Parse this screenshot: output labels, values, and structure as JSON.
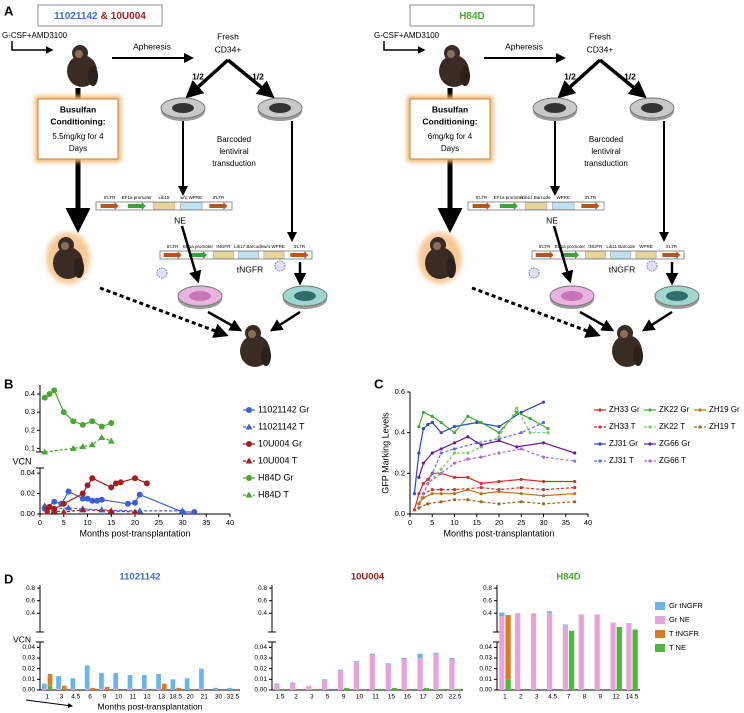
{
  "panel_labels": [
    "A",
    "B",
    "C",
    "D"
  ],
  "panel_a": [
    {
      "header": {
        "parts": [
          {
            "text": "11021142",
            "color": "#3a6fc4"
          },
          {
            "text": "&",
            "color": "#9e1b1b"
          },
          {
            "text": "10U004",
            "color": "#9e1b1b"
          }
        ]
      },
      "mobilization": "G-CSF+AMD3100",
      "apheresis": "Apheresis",
      "cells": [
        "Fresh",
        "CD34+"
      ],
      "split": [
        "1/2",
        "1/2"
      ],
      "conditioning": {
        "title": [
          "Busulfan",
          "Conditioning:"
        ],
        "dose": [
          "5.5mg/kg for 4",
          "Days"
        ]
      },
      "transduction": [
        "Barcoded",
        "lentiviral",
        "transduction"
      ],
      "vectors": [
        {
          "name": "NE",
          "elements": [
            "5'LTR",
            "EF1a promoter",
            "Lib15",
            "w/o WPRE",
            "3'LTR"
          ]
        },
        {
          "name": "tNGFR",
          "elements": [
            "5'LTR",
            "EF1a promoter",
            "tNGFR",
            "Lib17 Barcode",
            "w/o WPRE",
            "3'LTR"
          ]
        }
      ]
    },
    {
      "header": {
        "parts": [
          {
            "text": "H84D",
            "color": "#4aa832"
          }
        ]
      },
      "mobilization": "G-CSF+AMD3100",
      "apheresis": "Apheresis",
      "cells": [
        "Fresh",
        "CD34+"
      ],
      "split": [
        "1/2",
        "1/2"
      ],
      "conditioning": {
        "title": [
          "Busulfan",
          "Conditioning:"
        ],
        "dose": [
          "6mg/kg for 4",
          "Days"
        ]
      },
      "transduction": [
        "Barcoded",
        "lentiviral",
        "transduction"
      ],
      "vectors": [
        {
          "name": "NE",
          "elements": [
            "5'LTR",
            "EF1a promoter",
            "Lib21 Barcode",
            "WPRE",
            "3'LTR"
          ]
        },
        {
          "name": "tNGFR",
          "elements": [
            "5'LTR",
            "EF1a promoter",
            "tNGFR",
            "Lib11 Barcode",
            "WPRE",
            "3'LTR"
          ]
        }
      ]
    }
  ],
  "chart_data": [
    {
      "type": "line",
      "ylabel": "VCN",
      "xlabel": "Months post-transplantation",
      "xlim": [
        0,
        40
      ],
      "xticks": [
        0,
        5,
        10,
        15,
        20,
        25,
        30,
        35,
        40
      ],
      "ylim": [
        0,
        0.45
      ],
      "ybreak": [
        0.045,
        0.08
      ],
      "yticks": [
        {
          "value": 0,
          "label": "0.00"
        },
        0.02,
        0.04,
        0.1,
        0.2,
        0.3,
        0.4
      ],
      "series": [
        {
          "name": "11021142 Gr",
          "color": "#3b5fd9",
          "marker": "circle",
          "dashed": false,
          "x": [
            1,
            3,
            4.5,
            6,
            9,
            10,
            11,
            12,
            13,
            18.5,
            20,
            21,
            30,
            32.5
          ],
          "values": [
            0.005,
            0.012,
            0.01,
            0.022,
            0.015,
            0.015,
            0.013,
            0.013,
            0.014,
            0.01,
            0.011,
            0.019,
            0.002,
            0.002
          ]
        },
        {
          "name": "11021142 T",
          "color": "#3b5fd9",
          "marker": "triangle",
          "dashed": true,
          "x": [
            1,
            3,
            6,
            9,
            13,
            21,
            30
          ],
          "values": [
            0.008,
            0.005,
            0.006,
            0.005,
            0.004,
            0.003,
            0.003
          ]
        },
        {
          "name": "10U004 Gr",
          "color": "#a51d1d",
          "marker": "circle",
          "dashed": false,
          "x": [
            1.5,
            2,
            3,
            5,
            9,
            10,
            11,
            15,
            16,
            17,
            20,
            22.5
          ],
          "values": [
            0.005,
            0.007,
            0.005,
            0.01,
            0.02,
            0.028,
            0.035,
            0.026,
            0.03,
            0.031,
            0.035,
            0.03
          ]
        },
        {
          "name": "10U004 T",
          "color": "#a51d1d",
          "marker": "triangle",
          "dashed": true,
          "x": [
            1.5,
            3,
            5,
            9,
            15,
            20
          ],
          "values": [
            0.002,
            0.003,
            0.002,
            0.004,
            0.003,
            0.002
          ]
        },
        {
          "name": "H84D Gr",
          "color": "#4aa832",
          "marker": "circle",
          "dashed": false,
          "x": [
            1,
            2,
            3,
            5,
            7,
            9,
            11,
            13,
            15
          ],
          "values": [
            0.38,
            0.4,
            0.42,
            0.3,
            0.25,
            0.23,
            0.25,
            0.22,
            0.24
          ]
        },
        {
          "name": "H84D T",
          "color": "#4aa832",
          "marker": "triangle",
          "dashed": true,
          "x": [
            1,
            7,
            9,
            11,
            13,
            15
          ],
          "values": [
            0.08,
            0.1,
            0.11,
            0.12,
            0.16,
            0.14
          ]
        }
      ]
    },
    {
      "type": "line",
      "ylabel": "GFP Marking Levels",
      "xlabel": "Months post-transplantation",
      "xlim": [
        0,
        40
      ],
      "xticks": [
        0,
        5,
        10,
        15,
        20,
        25,
        30,
        35,
        40
      ],
      "ylim": [
        0,
        0.6
      ],
      "yticks": [
        {
          "value": 0,
          "label": "0.0"
        },
        0.2,
        0.4,
        0.6
      ],
      "series": [
        {
          "name": "ZH33 Gr",
          "color": "#d9302b",
          "dashed": false,
          "x": [
            1,
            2,
            3,
            4,
            5,
            7,
            10,
            13,
            16,
            20,
            25,
            30,
            37
          ],
          "values": [
            0.02,
            0.1,
            0.15,
            0.17,
            0.2,
            0.2,
            0.18,
            0.18,
            0.15,
            0.16,
            0.17,
            0.16,
            0.16
          ]
        },
        {
          "name": "ZH33 T",
          "color": "#d9302b",
          "dashed": true,
          "x": [
            2,
            3,
            5,
            7,
            10,
            16,
            20,
            25,
            30,
            37
          ],
          "values": [
            0.05,
            0.1,
            0.12,
            0.12,
            0.12,
            0.13,
            0.12,
            0.13,
            0.12,
            0.13
          ]
        },
        {
          "name": "ZJ31 Gr",
          "color": "#2f47c9",
          "dashed": false,
          "x": [
            1,
            2,
            3,
            4,
            5,
            7,
            10,
            15,
            20,
            25,
            30
          ],
          "values": [
            0.1,
            0.3,
            0.42,
            0.44,
            0.45,
            0.4,
            0.43,
            0.45,
            0.43,
            0.5,
            0.55
          ]
        },
        {
          "name": "ZJ31 T",
          "color": "#5b6cf0",
          "dashed": true,
          "x": [
            2,
            3,
            5,
            7,
            10,
            15,
            20,
            25,
            30
          ],
          "values": [
            0.05,
            0.1,
            0.2,
            0.3,
            0.32,
            0.35,
            0.37,
            0.4,
            0.45
          ]
        },
        {
          "name": "ZK22 Gr",
          "color": "#3fa83a",
          "dashed": false,
          "x": [
            2,
            3,
            5,
            7,
            10,
            13,
            16,
            20,
            24,
            27,
            31
          ],
          "values": [
            0.43,
            0.5,
            0.48,
            0.45,
            0.4,
            0.48,
            0.45,
            0.4,
            0.5,
            0.47,
            0.42
          ]
        },
        {
          "name": "ZK22 T",
          "color": "#7cc96a",
          "dashed": true,
          "x": [
            2,
            4,
            7,
            10,
            13,
            16,
            20,
            24,
            27,
            31
          ],
          "values": [
            0.05,
            0.15,
            0.22,
            0.3,
            0.3,
            0.33,
            0.38,
            0.52,
            0.4,
            0.4
          ]
        },
        {
          "name": "ZG66 Gr",
          "color": "#6a1f8f",
          "dashed": false,
          "x": [
            2,
            3,
            5,
            7,
            10,
            13,
            16,
            20,
            24,
            30,
            37
          ],
          "values": [
            0.18,
            0.25,
            0.3,
            0.32,
            0.35,
            0.38,
            0.34,
            0.36,
            0.33,
            0.35,
            0.3
          ]
        },
        {
          "name": "ZG66 T",
          "color": "#b06ad0",
          "dashed": true,
          "x": [
            2,
            4,
            7,
            10,
            13,
            16,
            20,
            25,
            30,
            37
          ],
          "values": [
            0.05,
            0.15,
            0.2,
            0.25,
            0.27,
            0.28,
            0.3,
            0.32,
            0.28,
            0.26
          ]
        },
        {
          "name": "ZH19 Gr",
          "color": "#c06d16",
          "dashed": false,
          "x": [
            2,
            3,
            5,
            7,
            10,
            13,
            16,
            20,
            25,
            30,
            37
          ],
          "values": [
            0.05,
            0.08,
            0.1,
            0.1,
            0.1,
            0.12,
            0.1,
            0.11,
            0.1,
            0.09,
            0.1
          ]
        },
        {
          "name": "ZH19 T",
          "color": "#a0681f",
          "dashed": true,
          "x": [
            2,
            4,
            7,
            10,
            13,
            16,
            20,
            25,
            30,
            37
          ],
          "values": [
            0.03,
            0.05,
            0.06,
            0.07,
            0.07,
            0.06,
            0.05,
            0.06,
            0.05,
            0.06
          ]
        }
      ]
    },
    {
      "type": "grouped-stacked-bar",
      "ylabel": "VCN",
      "xlabel": "Months post-transplantation",
      "ylim": [
        0,
        0.85
      ],
      "ybreak": [
        0.045,
        0.1
      ],
      "yticks": [
        {
          "value": 0,
          "label": "0.00"
        },
        0.01,
        0.02,
        0.03,
        0.04,
        0.4,
        0.6,
        0.8
      ],
      "legend": [
        {
          "name": "Gr tNGFR",
          "color": "#6ab4ec"
        },
        {
          "name": "Gr NE",
          "color": "#e9a3dc"
        },
        {
          "name": "T tNGFR",
          "color": "#d97b22"
        },
        {
          "name": "T NE",
          "color": "#4cbb3a"
        }
      ],
      "panels": [
        {
          "title": "11021142",
          "title_color": "#3a6fc4",
          "categories": [
            "1",
            "3",
            "4.5",
            "6",
            "9",
            "10",
            "11",
            "12",
            "13",
            "18.5",
            "20",
            "21",
            "30",
            "32.5"
          ],
          "series": [
            {
              "values": [
                0.005,
                0.012,
                0.01,
                0.022,
                0.015,
                0.015,
                0.013,
                0.013,
                0.014,
                0.01,
                0.011,
                0.019,
                0.002,
                0.002
              ]
            },
            {
              "values": [
                0.001,
                0.001,
                0.001,
                0.001,
                0.001,
                0.001,
                0.001,
                0.001,
                0.001,
                0,
                0,
                0.001,
                0,
                0
              ]
            },
            {
              "values": [
                0.011,
                0.004,
                0,
                0.002,
                0.003,
                0,
                0,
                0,
                0.006,
                0.002,
                0,
                0,
                0,
                0
              ]
            },
            {
              "values": [
                0.004,
                0,
                0,
                0,
                0,
                0,
                0,
                0,
                0,
                0,
                0,
                0,
                0,
                0
              ]
            }
          ]
        },
        {
          "title": "10U004",
          "title_color": "#9e1b1b",
          "categories": [
            "1.5",
            "2",
            "3",
            "5",
            "9",
            "10",
            "11",
            "15",
            "16",
            "17",
            "20",
            "22.5"
          ],
          "series": [
            {
              "values": [
                0.001,
                0.001,
                0,
                0.001,
                0.001,
                0.001,
                0.001,
                0.001,
                0.001,
                0.004,
                0.001,
                0.001
              ]
            },
            {
              "values": [
                0.005,
                0.006,
                0.004,
                0.009,
                0.018,
                0.026,
                0.033,
                0.024,
                0.029,
                0.03,
                0.034,
                0.029
              ]
            },
            {
              "values": [
                0,
                0,
                0,
                0,
                0,
                0,
                0,
                0,
                0,
                0,
                0,
                0
              ]
            },
            {
              "values": [
                0.001,
                0,
                0.001,
                0,
                0.002,
                0,
                0.001,
                0.002,
                0,
                0.002,
                0.001,
                0.001
              ]
            }
          ]
        },
        {
          "title": "H84D",
          "title_color": "#4aa832",
          "categories": [
            "1",
            "2",
            "3",
            "4.5",
            "7",
            "8",
            "9",
            "12",
            "14.5"
          ],
          "series": [
            {
              "values": [
                0.06,
                0,
                0,
                0.03,
                0.02,
                0,
                0,
                0,
                0.01
              ]
            },
            {
              "values": [
                0.35,
                0.4,
                0.4,
                0.4,
                0.2,
                0.38,
                0.38,
                0.25,
                0.23
              ]
            },
            {
              "values": [
                0.36,
                0,
                0,
                0,
                0,
                0,
                0,
                0,
                0
              ]
            },
            {
              "values": [
                0.01,
                0,
                0,
                0,
                0.12,
                0,
                0,
                0.18,
                0.14
              ]
            }
          ]
        }
      ]
    }
  ]
}
